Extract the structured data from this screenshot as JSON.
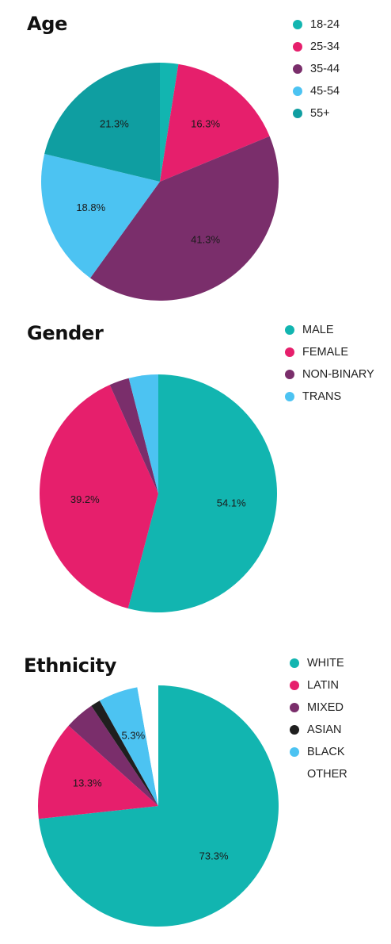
{
  "chart_data": [
    {
      "type": "pie",
      "title": "Age",
      "slices": [
        {
          "label": "18-24",
          "value": 2.5,
          "color": "#12b5b0",
          "data_label": ""
        },
        {
          "label": "25-34",
          "value": 16.3,
          "color": "#e61f6c",
          "data_label": "16.3%"
        },
        {
          "label": "35-44",
          "value": 41.3,
          "color": "#7a2e6b",
          "data_label": "41.3%"
        },
        {
          "label": "45-54",
          "value": 18.8,
          "color": "#4cc3f2",
          "data_label": "18.8%"
        },
        {
          "label": "55+",
          "value": 21.3,
          "color": "#0f9ea1",
          "data_label": "21.3%"
        }
      ],
      "legend_position": "top-right"
    },
    {
      "type": "pie",
      "title": "Gender",
      "slices": [
        {
          "label": "MALE",
          "value": 54.1,
          "color": "#12b5b0",
          "data_label": "54.1%"
        },
        {
          "label": "FEMALE",
          "value": 39.2,
          "color": "#e61f6c",
          "data_label": "39.2%"
        },
        {
          "label": "NON-BINARY",
          "value": 2.7,
          "color": "#7a2e6b",
          "data_label": ""
        },
        {
          "label": "TRANS",
          "value": 4.0,
          "color": "#4cc3f2",
          "data_label": ""
        }
      ],
      "legend_position": "top-right"
    },
    {
      "type": "pie",
      "title": "Ethnicity",
      "slices": [
        {
          "label": "WHITE",
          "value": 73.3,
          "color": "#12b5b0",
          "data_label": "73.3%"
        },
        {
          "label": "LATIN",
          "value": 13.3,
          "color": "#e61f6c",
          "data_label": "13.3%"
        },
        {
          "label": "MIXED",
          "value": 4.0,
          "color": "#7a2e6b",
          "data_label": ""
        },
        {
          "label": "ASIAN",
          "value": 1.3,
          "color": "#1f1f1f",
          "data_label": ""
        },
        {
          "label": "BLACK",
          "value": 5.3,
          "color": "#4cc3f2",
          "data_label": "5.3%"
        },
        {
          "label": "OTHER",
          "value": 2.8,
          "color": "#ffffff",
          "data_label": ""
        }
      ],
      "legend_position": "top-right"
    }
  ]
}
